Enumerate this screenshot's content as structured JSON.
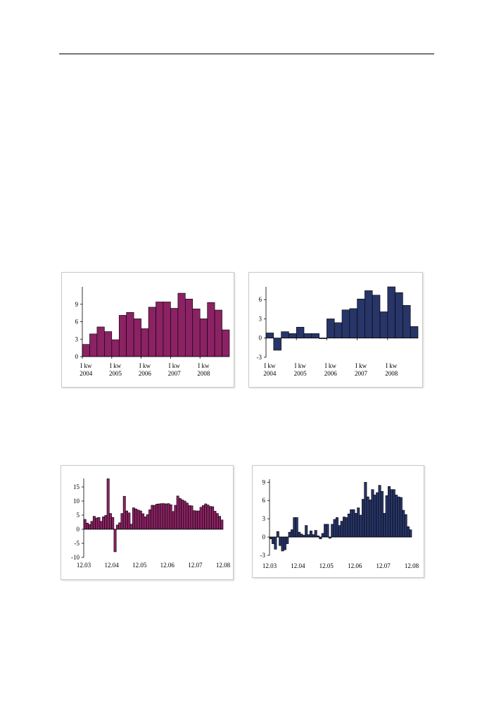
{
  "colors": {
    "purple": "#8b2263",
    "navy": "#283568",
    "axis": "#000000",
    "frame": "#c9c9c9"
  },
  "chart_data": [
    {
      "id": "quarterly-purple",
      "type": "bar",
      "color": "#8b2263",
      "ylim": [
        0,
        12
      ],
      "yticks": [
        0,
        3,
        6,
        9
      ],
      "year_labels": [
        {
          "line1": "I kw",
          "line2": "2004"
        },
        {
          "line1": "I kw",
          "line2": "2005"
        },
        {
          "line1": "I kw",
          "line2": "2006"
        },
        {
          "line1": "I kw",
          "line2": "2007"
        },
        {
          "line1": "I kw",
          "line2": "2008"
        }
      ],
      "values": [
        2.1,
        3.9,
        5.1,
        4.3,
        2.9,
        7.1,
        7.6,
        6.5,
        4.8,
        8.5,
        9.4,
        9.4,
        8.3,
        10.9,
        9.9,
        8.2,
        6.5,
        9.3,
        8.0,
        4.6
      ],
      "title": "",
      "xlabel": "",
      "ylabel": "",
      "grid": false
    },
    {
      "id": "quarterly-navy",
      "type": "bar",
      "color": "#283568",
      "ylim": [
        -3,
        8
      ],
      "yticks": [
        -3,
        0,
        3,
        6
      ],
      "year_labels": [
        {
          "line1": "I kw",
          "line2": "2004"
        },
        {
          "line1": "I kw",
          "line2": "2005"
        },
        {
          "line1": "I kw",
          "line2": "2006"
        },
        {
          "line1": "I kw",
          "line2": "2007"
        },
        {
          "line1": "I kw",
          "line2": "2008"
        }
      ],
      "values": [
        0.8,
        -1.9,
        1.0,
        0.7,
        1.7,
        0.7,
        0.7,
        -0.1,
        3.0,
        2.4,
        4.4,
        4.6,
        6.1,
        7.4,
        6.7,
        4.1,
        8.0,
        7.1,
        5.1,
        1.8
      ],
      "title": "",
      "xlabel": "",
      "ylabel": "",
      "grid": false
    },
    {
      "id": "monthly-purple",
      "type": "bar",
      "color": "#8b2263",
      "ylim": [
        -10,
        18
      ],
      "yticks": [
        -10,
        -5,
        0,
        5,
        10,
        15
      ],
      "x_ticks": [
        "12.03",
        "12.04",
        "12.05",
        "12.06",
        "12.07",
        "12.08"
      ],
      "values": [
        3.5,
        2.2,
        1.7,
        2.8,
        4.6,
        4.0,
        4.2,
        2.8,
        4.4,
        4.9,
        17.9,
        5.6,
        4.2,
        -8.0,
        1.5,
        2.3,
        5.6,
        11.7,
        6.5,
        5.8,
        1.8,
        7.6,
        7.2,
        6.8,
        6.5,
        5.5,
        4.4,
        5.2,
        6.9,
        8.5,
        8.5,
        8.9,
        9.0,
        9.1,
        9.1,
        9.0,
        9.1,
        8.7,
        6.3,
        8.5,
        11.8,
        10.9,
        10.4,
        10.0,
        9.3,
        8.4,
        8.3,
        6.6,
        6.5,
        6.5,
        7.8,
        8.4,
        9.0,
        8.6,
        8.1,
        8.0,
        6.4,
        5.6,
        4.6,
        3.3
      ],
      "title": "",
      "xlabel": "",
      "ylabel": "",
      "grid": false
    },
    {
      "id": "monthly-navy",
      "type": "bar",
      "color": "#283568",
      "ylim": [
        -3,
        9.5
      ],
      "yticks": [
        -3,
        0,
        3,
        6,
        9
      ],
      "x_ticks": [
        "12.03",
        "12.04",
        "12.05",
        "12.06",
        "12.07",
        "12.08"
      ],
      "values": [
        -0.3,
        -1.1,
        -2.0,
        0.9,
        -1.4,
        -2.3,
        -2.1,
        -1.1,
        0.8,
        1.2,
        3.2,
        3.2,
        0.8,
        0.5,
        0.3,
        1.9,
        0.4,
        1.0,
        0.4,
        1.1,
        0.2,
        -0.3,
        0.6,
        2.1,
        2.1,
        -0.2,
        2.1,
        2.9,
        3.2,
        1.9,
        2.6,
        3.3,
        3.2,
        3.8,
        4.5,
        4.5,
        3.9,
        4.8,
        3.6,
        6.2,
        9.0,
        6.6,
        6.1,
        7.8,
        6.9,
        7.3,
        8.5,
        7.5,
        3.9,
        6.8,
        8.3,
        7.8,
        7.8,
        6.9,
        6.6,
        6.5,
        4.4,
        3.7,
        1.7,
        1.2
      ],
      "title": "",
      "xlabel": "",
      "ylabel": "",
      "grid": false
    }
  ]
}
